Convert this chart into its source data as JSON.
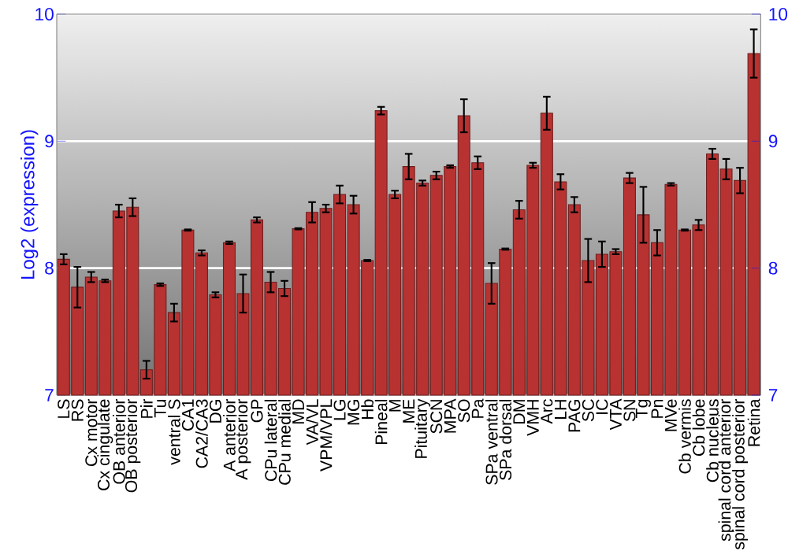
{
  "chart_data": {
    "type": "bar",
    "ylabel": "Log2 (expression)",
    "categories": [
      "LS",
      "RS",
      "Cx motor",
      "Cx cingulate",
      "OB anterior",
      "OB posterior",
      "Pir",
      "Tu",
      "ventral S",
      "CA1",
      "CA2/CA3",
      "DG",
      "A anterior",
      "A posterior",
      "GP",
      "CPu lateral",
      "CPu medial",
      "MD",
      "VA/VL",
      "VPM/VPL",
      "LG",
      "MG",
      "Hb",
      "Pineal",
      "M",
      "ME",
      "Pituitary",
      "SCN",
      "MPA",
      "SO",
      "Pa",
      "SPa ventral",
      "SPa dorsal",
      "DM",
      "VMH",
      "Arc",
      "LH",
      "PAG",
      "SC",
      "IC",
      "VTA",
      "SN",
      "Tg",
      "Pn",
      "MVe",
      "Cb vermis",
      "Cb lobe",
      "Cb nucleus",
      "spinal cord anterior",
      "spinal cord posterior",
      "Retina"
    ],
    "values": [
      8.07,
      7.85,
      7.93,
      7.9,
      8.45,
      8.48,
      7.2,
      7.87,
      7.65,
      8.3,
      8.12,
      7.79,
      8.2,
      7.8,
      8.38,
      7.89,
      7.84,
      8.31,
      8.44,
      8.47,
      8.58,
      8.5,
      8.06,
      9.24,
      8.58,
      8.8,
      8.67,
      8.73,
      8.8,
      9.2,
      8.83,
      7.88,
      8.15,
      8.46,
      8.81,
      9.22,
      8.68,
      8.5,
      8.06,
      8.11,
      8.13,
      8.71,
      8.42,
      8.2,
      8.66,
      8.3,
      8.34,
      8.9,
      8.78,
      8.69,
      9.69
    ],
    "errors": [
      0.04,
      0.16,
      0.04,
      0.01,
      0.05,
      0.07,
      0.07,
      0.01,
      0.07,
      0.005,
      0.02,
      0.02,
      0.01,
      0.15,
      0.02,
      0.08,
      0.06,
      0.005,
      0.08,
      0.03,
      0.07,
      0.07,
      0.005,
      0.03,
      0.03,
      0.1,
      0.02,
      0.03,
      0.01,
      0.13,
      0.05,
      0.16,
      0.005,
      0.07,
      0.02,
      0.13,
      0.06,
      0.06,
      0.17,
      0.1,
      0.02,
      0.04,
      0.22,
      0.1,
      0.01,
      0.005,
      0.04,
      0.04,
      0.08,
      0.1,
      0.19
    ],
    "color": "#b83232",
    "ylim": [
      7,
      10
    ],
    "yticks": [
      7,
      8,
      9,
      10
    ],
    "y2lim": [
      7,
      10
    ],
    "y2ticks": [
      7,
      8,
      9,
      10
    ],
    "grid": "y"
  }
}
